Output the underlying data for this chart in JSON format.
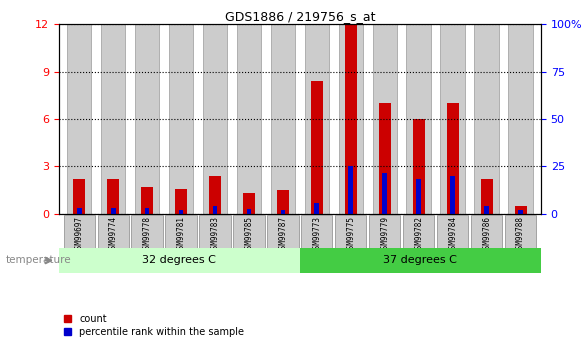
{
  "title": "GDS1886 / 219756_s_at",
  "categories": [
    "GSM99697",
    "GSM99774",
    "GSM99778",
    "GSM99781",
    "GSM99783",
    "GSM99785",
    "GSM99787",
    "GSM99773",
    "GSM99775",
    "GSM99779",
    "GSM99782",
    "GSM99784",
    "GSM99786",
    "GSM99788"
  ],
  "count_values": [
    2.2,
    2.2,
    1.7,
    1.6,
    2.4,
    1.3,
    1.5,
    8.4,
    12.0,
    7.0,
    6.0,
    7.0,
    2.2,
    0.5
  ],
  "percentile_values": [
    0.35,
    0.35,
    0.35,
    0.25,
    0.5,
    0.3,
    0.25,
    0.7,
    3.0,
    2.6,
    2.2,
    2.4,
    0.5,
    0.25
  ],
  "group1_label": "32 degrees C",
  "group2_label": "37 degrees C",
  "group1_count": 7,
  "group2_count": 7,
  "ylim_left": [
    0,
    12
  ],
  "ylim_right": [
    0,
    100
  ],
  "yticks_left": [
    0,
    3,
    6,
    9,
    12
  ],
  "yticks_right": [
    0,
    25,
    50,
    75,
    100
  ],
  "ytick_labels_right": [
    "0",
    "25",
    "50",
    "75",
    "100%"
  ],
  "color_count": "#cc0000",
  "color_percentile": "#0000cc",
  "color_group1_bg": "#ccffcc",
  "color_group2_bg": "#44cc44",
  "color_bar_bg": "#cccccc",
  "color_bar_bg_border": "#999999",
  "bar_width": 0.35,
  "temperature_label": "temperature",
  "legend_count": "count",
  "legend_percentile": "percentile rank within the sample"
}
